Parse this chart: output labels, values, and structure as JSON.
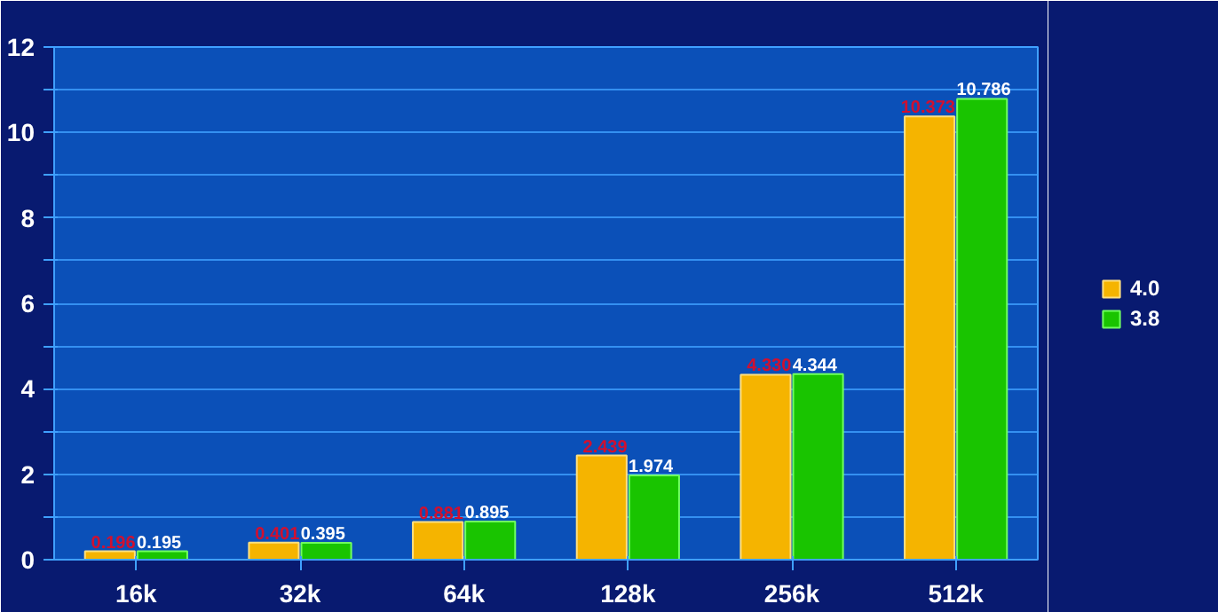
{
  "chart_data": {
    "type": "bar",
    "categories": [
      "16k",
      "32k",
      "64k",
      "128k",
      "256k",
      "512k"
    ],
    "series": [
      {
        "name": "4.0",
        "color": "#f5b400",
        "values": [
          0.196,
          0.401,
          0.881,
          2.439,
          4.33,
          10.373
        ],
        "value_labels": [
          "0.196",
          "0.401",
          "0.881",
          "2.439",
          "4.330",
          "10.373"
        ]
      },
      {
        "name": "3.8",
        "color": "#19c400",
        "values": [
          0.195,
          0.395,
          0.895,
          1.974,
          4.344,
          10.786
        ],
        "value_labels": [
          "0.195",
          "0.395",
          "0.895",
          "1.974",
          "4.344",
          "10.786"
        ]
      }
    ],
    "ylim": [
      0,
      12
    ],
    "yticks": [
      0,
      {
        "value": 1,
        "label": null
      },
      2,
      {
        "value": 3,
        "label": null
      },
      4,
      {
        "value": 5,
        "label": null
      },
      6,
      {
        "value": 7,
        "label": null
      },
      8,
      {
        "value": 9,
        "label": null
      },
      10,
      {
        "value": 11,
        "label": null
      },
      12
    ],
    "grid": "y",
    "legend": "right"
  }
}
